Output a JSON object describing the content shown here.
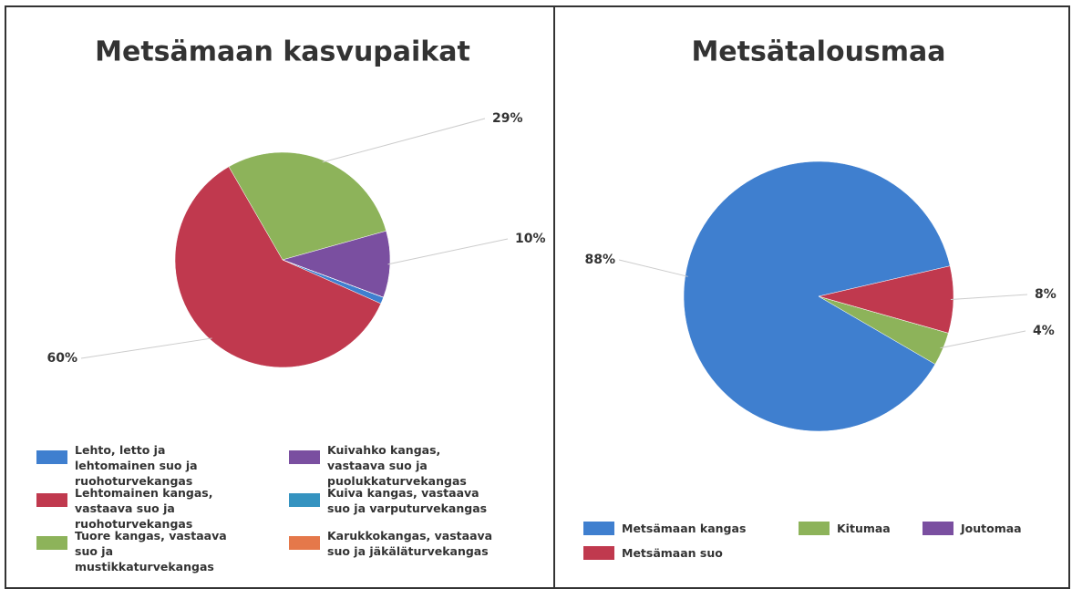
{
  "chart_data": [
    {
      "type": "pie",
      "title": "Metsämaan kasvupaikat",
      "categories": [
        "Lehto, letto ja lehtomainen suo ja ruohoturvekangas",
        "Lehtomainen kangas, vastaava suo ja ruohoturvekangas",
        "Tuore kangas, vastaava suo ja mustikkaturvekangas",
        "Kuivahko kangas, vastaava suo ja puolukkaturvekangas",
        "Kuiva kangas, vastaava suo ja varputurvekangas",
        "Karukkokangas, vastaava suo ja jäkäläturvekangas"
      ],
      "values": [
        1,
        60,
        29,
        10,
        0,
        0
      ],
      "value_labels": [
        null,
        "60%",
        "29%",
        "10%",
        null,
        null
      ],
      "colors": [
        "#3f7fcf",
        "#c0394e",
        "#8db35a",
        "#7a4fa0",
        "#3593c0",
        "#e5784a"
      ]
    },
    {
      "type": "pie",
      "title": "Metsätalousmaa",
      "categories": [
        "Metsämaan kangas",
        "Kitumaa",
        "Joutomaa",
        "Metsämaan suo"
      ],
      "values": [
        88,
        4,
        0,
        8
      ],
      "value_labels": [
        "88%",
        "4%",
        null,
        "8%"
      ],
      "colors": [
        "#3f7fcf",
        "#8db35a",
        "#7a4fa0",
        "#c0394e"
      ]
    }
  ]
}
